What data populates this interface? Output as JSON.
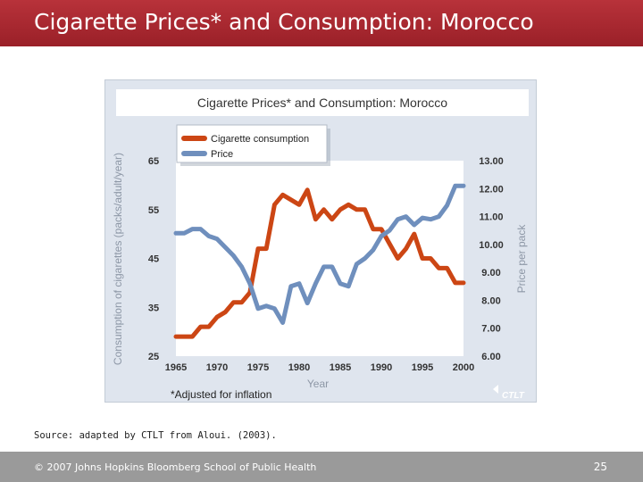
{
  "slide": {
    "title": "Cigarette Prices* and Consumption: Morocco",
    "source": "Source: adapted by CTLT from Aloui. (2003).",
    "footer": "© 2007 Johns Hopkins Bloomberg School of Public Health",
    "page_number": "25"
  },
  "colors": {
    "title_bar": "#a8262e",
    "consumption": "#cc4614",
    "price": "#6f8fbd",
    "panel": "#dfe5ee",
    "footer_bar": "#9a9a9a"
  },
  "chart_data": {
    "type": "line",
    "title": "Cigarette Prices* and Consumption: Morocco",
    "xlabel": "Year",
    "ylabel_left": "Consumption of cigarettes (packs/adult/year)",
    "ylabel_right": "Price per pack",
    "footnote": "*Adjusted for inflation",
    "watermark": "CTLT",
    "xlim": [
      1965,
      2000
    ],
    "ylim_left": [
      25,
      65
    ],
    "ylim_right": [
      6.0,
      13.0
    ],
    "x_ticks": [
      "1965",
      "1970",
      "1975",
      "1980",
      "1985",
      "1990",
      "1995",
      "2000"
    ],
    "y_ticks_left": [
      "65",
      "55",
      "45",
      "35",
      "25"
    ],
    "y_ticks_right": [
      "13.00",
      "12.00",
      "11.00",
      "10.00",
      "9.00",
      "8.00",
      "7.00",
      "6.00"
    ],
    "legend": [
      "Cigarette consumption",
      "Price"
    ],
    "series": [
      {
        "name": "Cigarette consumption",
        "axis": "left",
        "x": [
          1965,
          1966,
          1967,
          1968,
          1969,
          1970,
          1971,
          1972,
          1973,
          1974,
          1975,
          1976,
          1977,
          1978,
          1979,
          1980,
          1981,
          1982,
          1983,
          1984,
          1985,
          1986,
          1987,
          1988,
          1989,
          1990,
          1991,
          1992,
          1993,
          1994,
          1995,
          1996,
          1997,
          1998,
          1999,
          2000
        ],
        "values": [
          29,
          29,
          29,
          31,
          31,
          33,
          34,
          36,
          36,
          38,
          47,
          47,
          56,
          58,
          57,
          56,
          59,
          53,
          55,
          53,
          55,
          56,
          55,
          55,
          51,
          51,
          48,
          45,
          47,
          50,
          45,
          45,
          43,
          43,
          40,
          40
        ]
      },
      {
        "name": "Price",
        "axis": "right",
        "x": [
          1965,
          1966,
          1967,
          1968,
          1969,
          1970,
          1971,
          1972,
          1973,
          1974,
          1975,
          1976,
          1977,
          1978,
          1979,
          1980,
          1981,
          1982,
          1983,
          1984,
          1985,
          1986,
          1987,
          1988,
          1989,
          1990,
          1991,
          1992,
          1993,
          1994,
          1995,
          1996,
          1997,
          1998,
          1999,
          2000
        ],
        "values": [
          10.4,
          10.4,
          10.55,
          10.55,
          10.3,
          10.2,
          9.9,
          9.6,
          9.2,
          8.6,
          7.7,
          7.8,
          7.7,
          7.2,
          8.5,
          8.6,
          7.9,
          8.6,
          9.2,
          9.2,
          8.6,
          8.5,
          9.3,
          9.5,
          9.8,
          10.3,
          10.5,
          10.9,
          11.0,
          10.7,
          10.95,
          10.9,
          11.0,
          11.4,
          12.1,
          12.1
        ]
      }
    ]
  }
}
